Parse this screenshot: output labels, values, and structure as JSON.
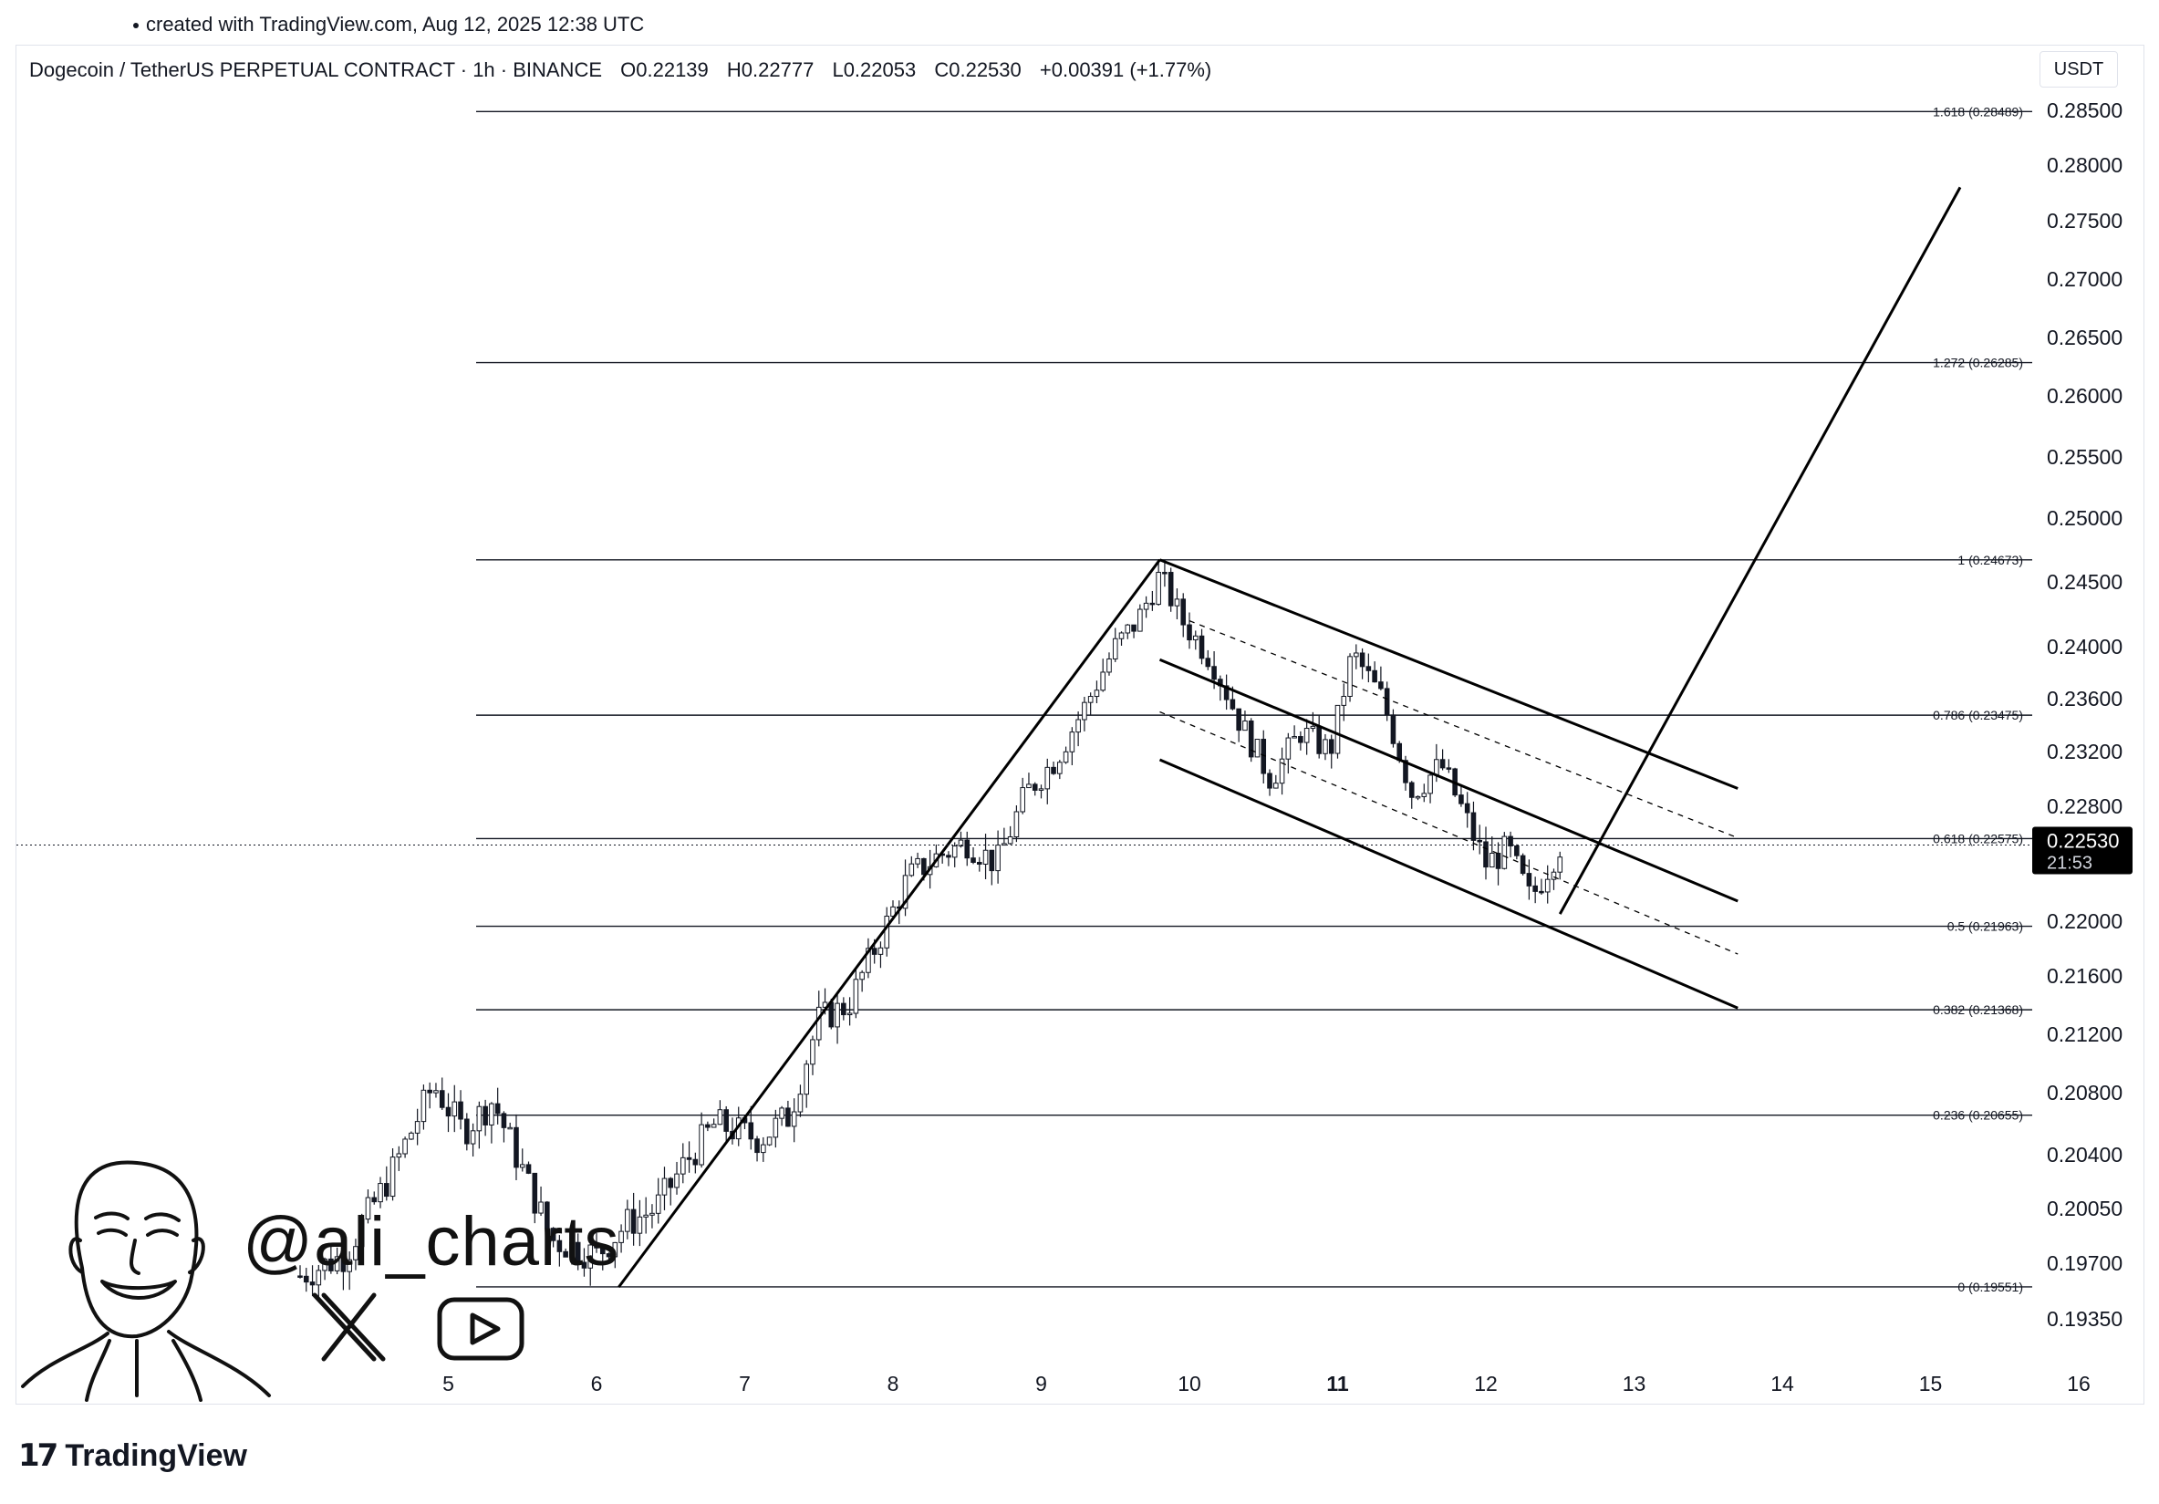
{
  "header": {
    "caption": "created with TradingView.com, Aug 12, 2025 12:38 UTC"
  },
  "legend": {
    "symbol": "Dogecoin / TetherUS PERPETUAL CONTRACT · 1h · BINANCE",
    "open": "O0.22139",
    "high": "H0.22777",
    "low": "L0.22053",
    "close": "C0.22530",
    "change": "+0.00391 (+1.77%)"
  },
  "price_scale": {
    "currency": "USDT",
    "last_price": "0.22530",
    "countdown": "21:53"
  },
  "branding": {
    "handle": "@ali_charts",
    "platform": "TradingView",
    "icons": [
      "x-logo-icon",
      "youtube-play-icon",
      "cartoon-avatar"
    ]
  },
  "colors": {
    "candles": "#131722",
    "lines": "#000000",
    "last_price_badge": "#000000",
    "grid_level_line": "#131722"
  },
  "chart_data": {
    "type": "candlestick",
    "timeframe": "1h",
    "x_ticks": [
      "5",
      "6",
      "7",
      "8",
      "9",
      "10",
      "11",
      "12",
      "13",
      "14",
      "15",
      "16"
    ],
    "x_tick_bold": "11",
    "y_ticks": [
      "0.28500",
      "0.28000",
      "0.27500",
      "0.27000",
      "0.26500",
      "0.26000",
      "0.25500",
      "0.25000",
      "0.24500",
      "0.24000",
      "0.23600",
      "0.23200",
      "0.22800",
      "0.22000",
      "0.21600",
      "0.21200",
      "0.20800",
      "0.20400",
      "0.20050",
      "0.19700",
      "0.19350"
    ],
    "fib_levels": [
      {
        "label": "1.618 (0.28489)",
        "value": 0.28489
      },
      {
        "label": "1.272 (0.26285)",
        "value": 0.26285
      },
      {
        "label": "1 (0.24673)",
        "value": 0.24673
      },
      {
        "label": "0.786 (0.23475)",
        "value": 0.23475
      },
      {
        "label": "0.618 (0.22575)",
        "value": 0.22575
      },
      {
        "label": "0.5 (0.21963)",
        "value": 0.21963
      },
      {
        "label": "0.382 (0.21368)",
        "value": 0.21368
      },
      {
        "label": "0.236 (0.20655)",
        "value": 0.20655
      },
      {
        "label": "0 (0.19551)",
        "value": 0.19551
      }
    ],
    "last_price": 0.2253,
    "price_path": [
      [
        4.0,
        0.1962
      ],
      [
        4.3,
        0.1975
      ],
      [
        4.6,
        0.2025
      ],
      [
        4.9,
        0.2085
      ],
      [
        5.1,
        0.2055
      ],
      [
        5.3,
        0.2075
      ],
      [
        5.5,
        0.203
      ],
      [
        5.7,
        0.1985
      ],
      [
        6.0,
        0.1975
      ],
      [
        6.2,
        0.1995
      ],
      [
        6.4,
        0.2005
      ],
      [
        6.6,
        0.2035
      ],
      [
        6.8,
        0.206
      ],
      [
        7.1,
        0.205
      ],
      [
        7.3,
        0.2065
      ],
      [
        7.5,
        0.213
      ],
      [
        7.7,
        0.214
      ],
      [
        7.9,
        0.2185
      ],
      [
        8.1,
        0.223
      ],
      [
        8.3,
        0.2245
      ],
      [
        8.5,
        0.2255
      ],
      [
        8.7,
        0.224
      ],
      [
        8.9,
        0.229
      ],
      [
        9.1,
        0.2315
      ],
      [
        9.3,
        0.2355
      ],
      [
        9.5,
        0.24
      ],
      [
        9.65,
        0.242
      ],
      [
        9.8,
        0.2455
      ],
      [
        9.95,
        0.242
      ],
      [
        10.15,
        0.239
      ],
      [
        10.35,
        0.234
      ],
      [
        10.55,
        0.23
      ],
      [
        10.75,
        0.2335
      ],
      [
        10.95,
        0.232
      ],
      [
        11.1,
        0.2395
      ],
      [
        11.3,
        0.236
      ],
      [
        11.5,
        0.229
      ],
      [
        11.7,
        0.231
      ],
      [
        11.85,
        0.2275
      ],
      [
        12.0,
        0.224
      ],
      [
        12.15,
        0.225
      ],
      [
        12.3,
        0.2215
      ],
      [
        12.5,
        0.2253
      ]
    ],
    "drawings": {
      "impulse_line": [
        [
          6.15,
          0.1955
        ],
        [
          9.8,
          0.24673
        ]
      ],
      "channel_upper": [
        [
          9.8,
          0.24673
        ],
        [
          13.7,
          0.2293
        ]
      ],
      "channel_middle": [
        [
          9.8,
          0.239
        ],
        [
          13.7,
          0.2214
        ]
      ],
      "channel_lower": [
        [
          9.8,
          0.2314
        ],
        [
          13.7,
          0.2138
        ]
      ],
      "channel_dashed_upper": [
        [
          10.0,
          0.242
        ],
        [
          13.7,
          0.2258
        ]
      ],
      "channel_dashed_lower": [
        [
          9.8,
          0.235
        ],
        [
          13.7,
          0.2176
        ]
      ],
      "projection_line": [
        [
          12.5,
          0.2205
        ],
        [
          15.2,
          0.278
        ]
      ]
    }
  }
}
